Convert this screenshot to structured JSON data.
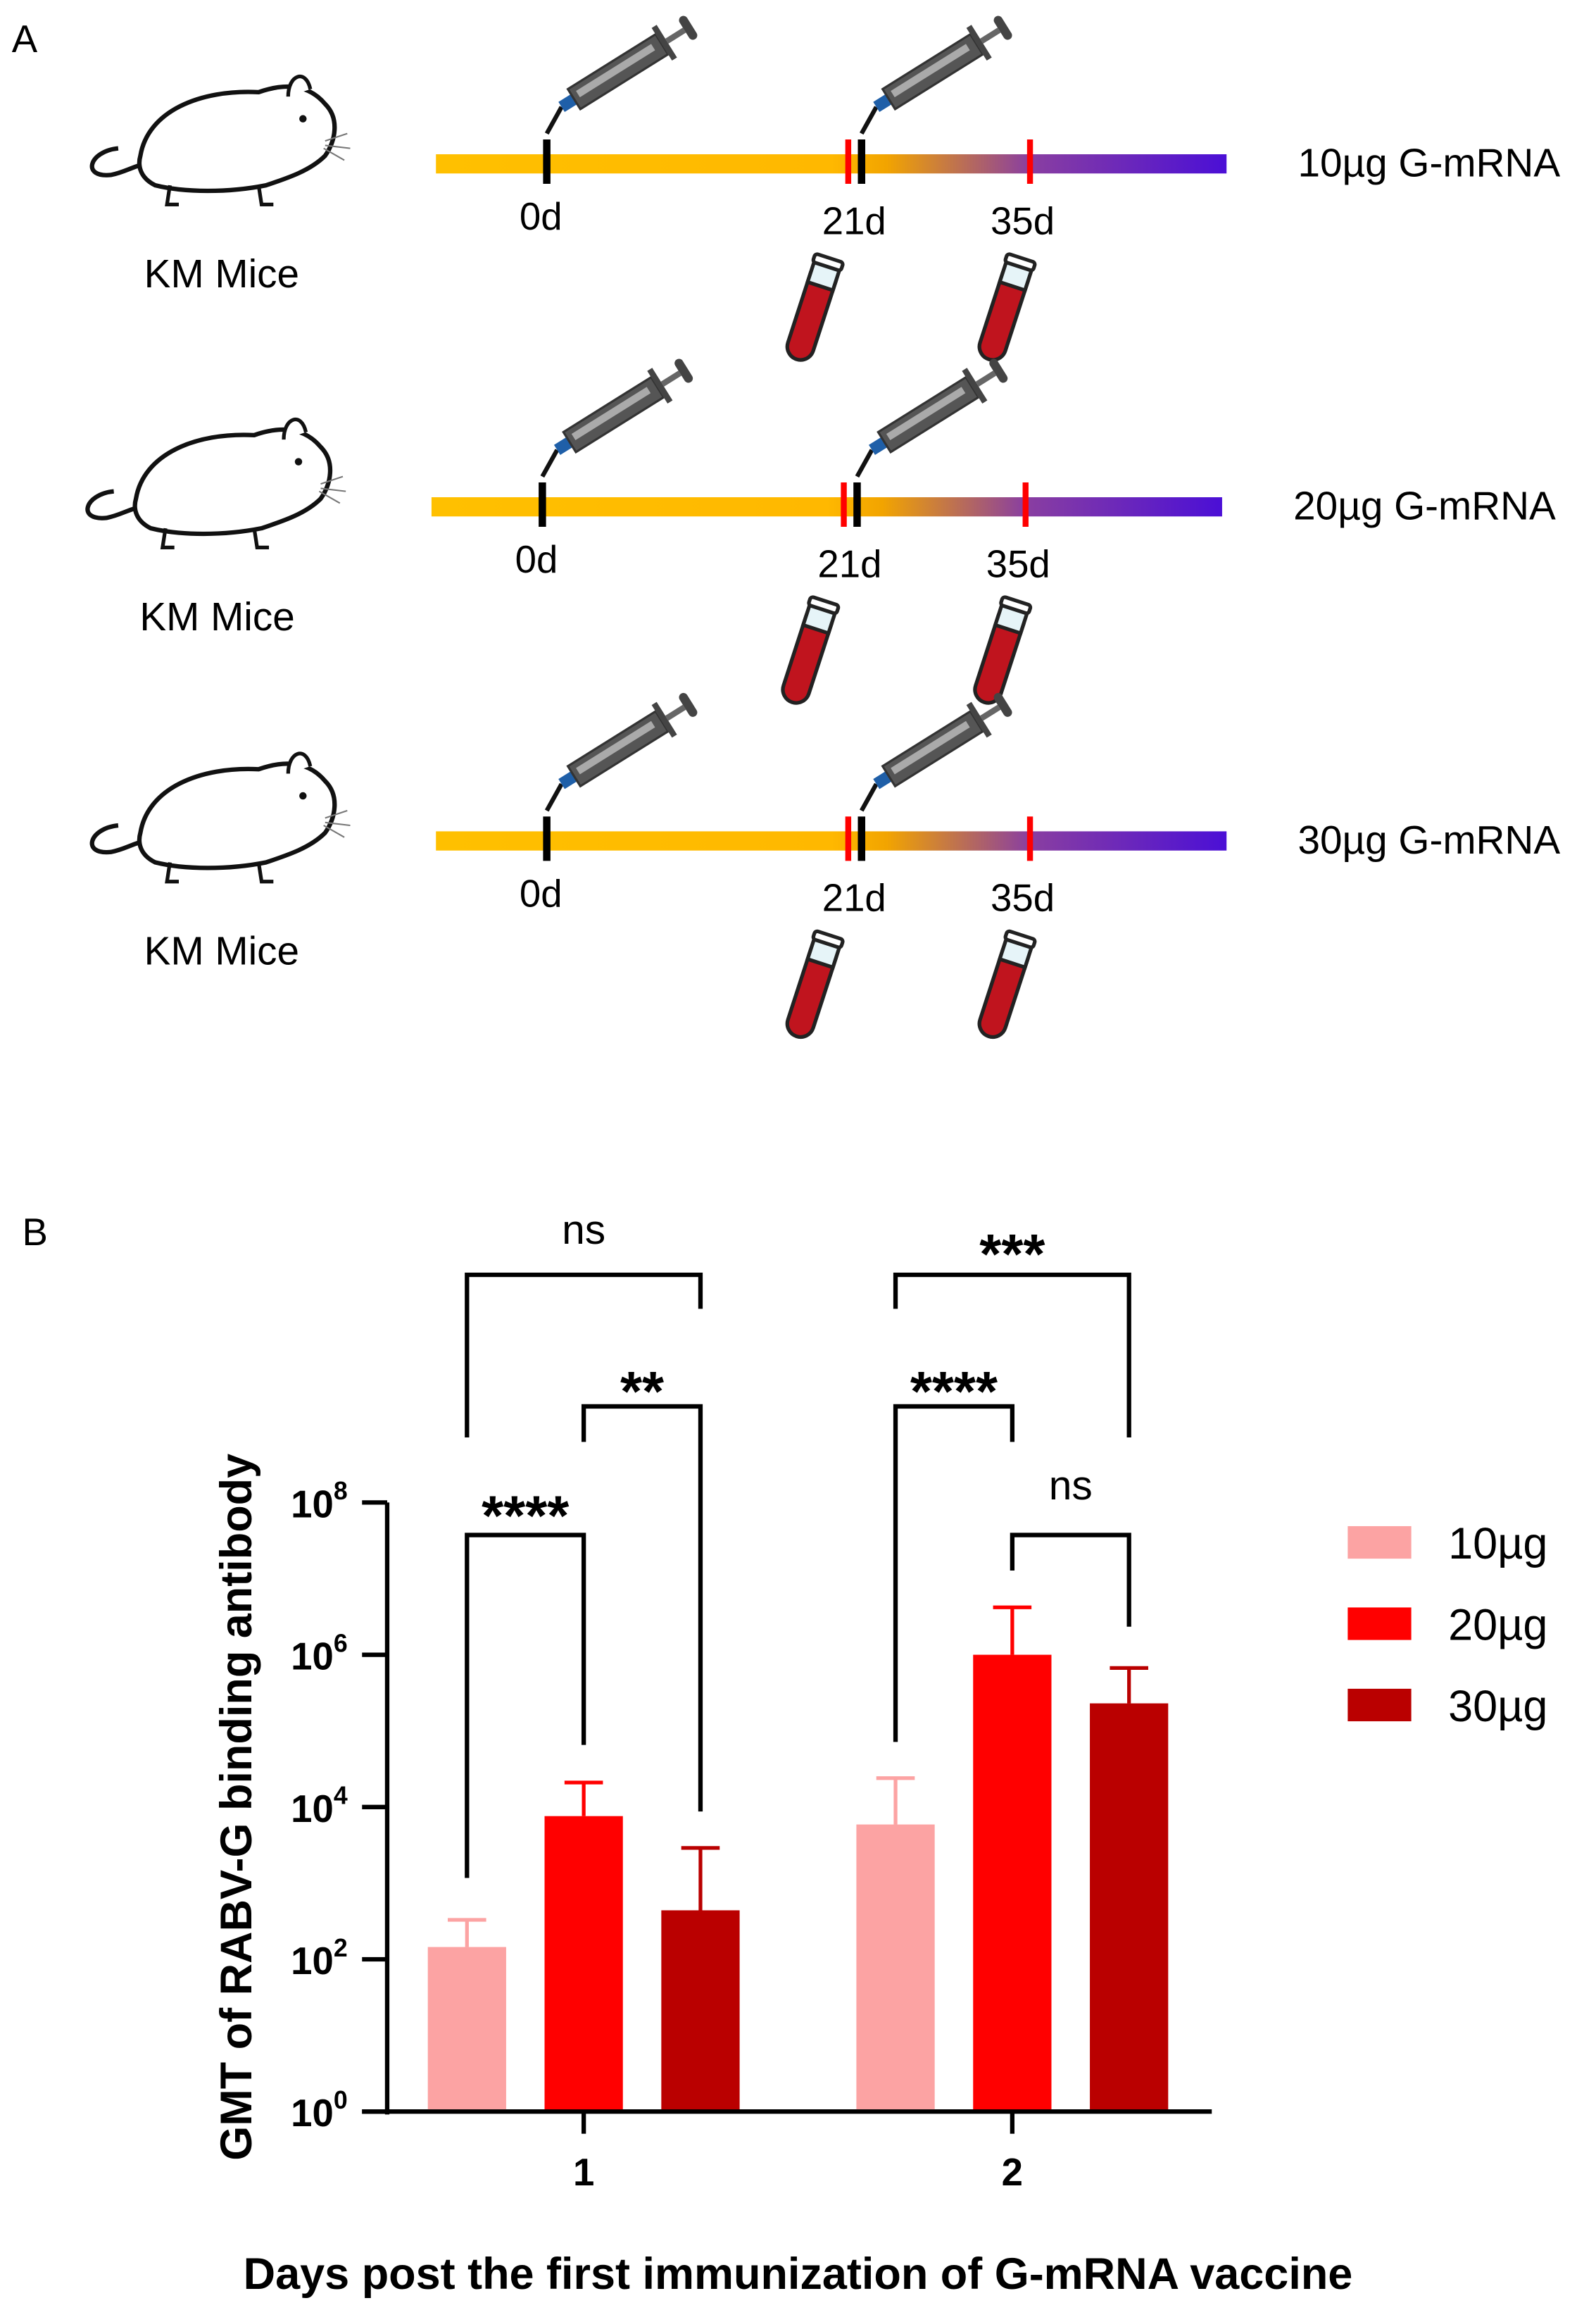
{
  "panel_a": {
    "label": "A",
    "rows": [
      {
        "subject": "KM Mice",
        "group": "10µg G-mRNA",
        "timepoints": [
          "0d",
          "21d",
          "35d"
        ]
      },
      {
        "subject": "KM Mice",
        "group": "20µg G-mRNA",
        "timepoints": [
          "0d",
          "21d",
          "35d"
        ]
      },
      {
        "subject": "KM Mice",
        "group": "30µg G-mRNA",
        "timepoints": [
          "0d",
          "21d",
          "35d"
        ]
      }
    ],
    "injection_days": [
      "0d",
      "21d"
    ],
    "blood_sampling_days": [
      "21d",
      "35d"
    ],
    "timeline_colors": {
      "start": "#FFC000",
      "end": "#4B0FD6",
      "injection_mark": "#000000",
      "sampling_mark": "#FF0000"
    },
    "icons": [
      "mouse-icon",
      "syringe-icon",
      "blood-tube-icon"
    ]
  },
  "panel_b": {
    "label": "B",
    "chart_data": {
      "type": "bar",
      "xlabel": "Days post the first immunization of G-mRNA vaccine",
      "ylabel": "GMT of RABV-G binding antibody",
      "yscale": "log10",
      "ylim": [
        1,
        100000000
      ],
      "yticks": [
        {
          "base": "10",
          "exp": "0"
        },
        {
          "base": "10",
          "exp": "2"
        },
        {
          "base": "10",
          "exp": "4"
        },
        {
          "base": "10",
          "exp": "6"
        },
        {
          "base": "10",
          "exp": "8"
        }
      ],
      "categories": [
        "1",
        "2"
      ],
      "series": [
        {
          "name": "10µg",
          "color": "#FCA3A3",
          "values": [
            145,
            5900
          ],
          "error_upper": [
            330,
            24000
          ]
        },
        {
          "name": "20µg",
          "color": "#FF0000",
          "values": [
            7600,
            1000000
          ],
          "error_upper": [
            21000,
            4200000
          ]
        },
        {
          "name": "30µg",
          "color": "#BA0000",
          "values": [
            440,
            230000
          ],
          "error_upper": [
            2900,
            670000
          ]
        }
      ],
      "legend_position": "right",
      "grid": false,
      "significance": [
        {
          "category": "1",
          "from": "10µg",
          "to": "20µg",
          "label": "****"
        },
        {
          "category": "1",
          "from": "20µg",
          "to": "30µg",
          "label": "**"
        },
        {
          "category": "1",
          "from": "10µg",
          "to": "30µg",
          "label": "ns"
        },
        {
          "category": "2",
          "from": "10µg",
          "to": "20µg",
          "label": "****"
        },
        {
          "category": "2",
          "from": "20µg",
          "to": "30µg",
          "label": "ns"
        },
        {
          "category": "2",
          "from": "10µg",
          "to": "30µg",
          "label": "***"
        }
      ]
    }
  }
}
